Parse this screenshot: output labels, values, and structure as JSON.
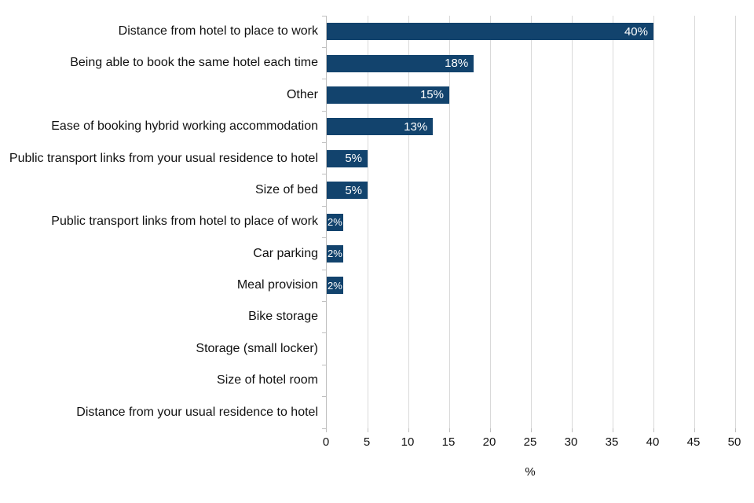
{
  "chart_data": {
    "type": "bar",
    "orientation": "horizontal",
    "title": "",
    "xlabel": "%",
    "ylabel": "",
    "xlim": [
      0,
      50
    ],
    "xticks": [
      0,
      5,
      10,
      15,
      20,
      25,
      30,
      35,
      40,
      45,
      50
    ],
    "grid": "vertical",
    "legend": "none",
    "categories": [
      "Distance from hotel to place to work",
      "Being able to book the same hotel each time",
      "Other",
      "Ease of booking hybrid working accommodation",
      "Public transport links from your usual residence to hotel",
      "Size of bed",
      "Public transport links from hotel to place of work",
      "Car parking",
      "Meal provision",
      "Bike storage",
      "Storage (small locker)",
      "Size of hotel room",
      "Distance from your usual residence to hotel"
    ],
    "values": [
      40,
      18,
      15,
      13,
      5,
      5,
      2,
      2,
      2,
      0,
      0,
      0,
      0
    ],
    "value_labels": [
      "40%",
      "18%",
      "15%",
      "13%",
      "5%",
      "5%",
      "2%",
      "2%",
      "2%",
      "",
      "",
      "",
      ""
    ],
    "colors": {
      "bar": "#12436d",
      "bar_label_text": "#ffffff",
      "gridline": "#d9d9d9",
      "axis_line": "#bfbfbf",
      "text": "#111111"
    }
  }
}
